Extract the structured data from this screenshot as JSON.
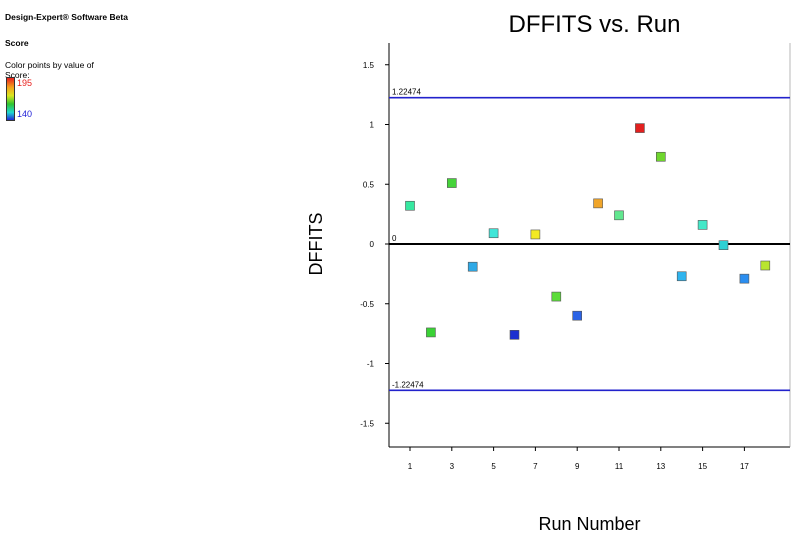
{
  "panel": {
    "software": "Design-Expert® Software Beta",
    "response": "Score",
    "color_by": "Color points by value of Score:",
    "scale_max": "195",
    "scale_min": "140"
  },
  "colors": {
    "limit_line": "#2222cc",
    "zero_line": "#000000",
    "scale_high": "#e8201e",
    "scale_low": "#1f27d8"
  },
  "chart_data": {
    "type": "scatter",
    "title": "DFFITS vs. Run",
    "xlabel": "Run Number",
    "ylabel": "DFFITS",
    "xlim": [
      0.5,
      18.5
    ],
    "ylim": [
      -1.65,
      1.65
    ],
    "x_ticks": [
      1,
      3,
      5,
      7,
      9,
      11,
      13,
      15,
      17
    ],
    "y_ticks": [
      1.5,
      1,
      0.5,
      0,
      -0.5,
      -1,
      -1.5
    ],
    "y_tick_labels": [
      "1.5",
      "1",
      "0.5",
      "0",
      "-0.5",
      "-1",
      "-1.5"
    ],
    "reference_lines": [
      {
        "value": 1.22474,
        "label": "1.22474",
        "color": "#2222cc"
      },
      {
        "value": 0,
        "label": "0",
        "color": "#000000"
      },
      {
        "value": -1.22474,
        "label": "-1.22474",
        "color": "#2222cc"
      }
    ],
    "points": [
      {
        "x": 1,
        "y": 0.32,
        "color": "#36e8a0"
      },
      {
        "x": 2,
        "y": -0.74,
        "color": "#3ad235"
      },
      {
        "x": 3,
        "y": 0.51,
        "color": "#45d33a"
      },
      {
        "x": 4,
        "y": -0.19,
        "color": "#2fa9e6"
      },
      {
        "x": 5,
        "y": 0.09,
        "color": "#3fe6d8"
      },
      {
        "x": 6,
        "y": -0.76,
        "color": "#1b2fd0"
      },
      {
        "x": 7,
        "y": 0.08,
        "color": "#f3ea22"
      },
      {
        "x": 8,
        "y": -0.44,
        "color": "#5cdc3a"
      },
      {
        "x": 9,
        "y": -0.6,
        "color": "#2b63e6"
      },
      {
        "x": 10,
        "y": 0.34,
        "color": "#f0a52a"
      },
      {
        "x": 11,
        "y": 0.24,
        "color": "#61e78f"
      },
      {
        "x": 12,
        "y": 0.97,
        "color": "#e2201f"
      },
      {
        "x": 13,
        "y": 0.73,
        "color": "#6fd62e"
      },
      {
        "x": 14,
        "y": -0.27,
        "color": "#2fb4ee"
      },
      {
        "x": 15,
        "y": 0.16,
        "color": "#44e8c8"
      },
      {
        "x": 16,
        "y": -0.01,
        "color": "#2ed0d4"
      },
      {
        "x": 17,
        "y": -0.29,
        "color": "#2b8ef0"
      },
      {
        "x": 18,
        "y": -0.18,
        "color": "#b9e52e"
      }
    ]
  }
}
